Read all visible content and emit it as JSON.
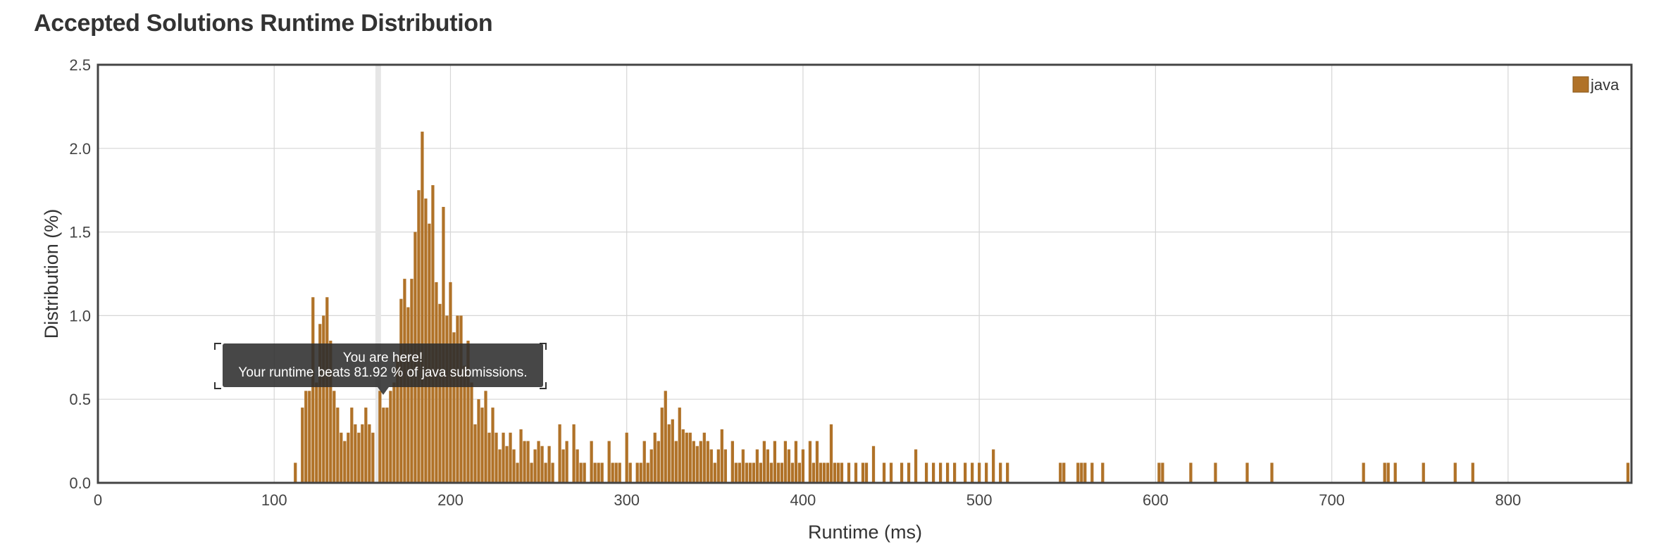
{
  "title": "Accepted Solutions Runtime Distribution",
  "tooltip": {
    "line1": "You are here!",
    "line2": "Your runtime beats 81.92 % of java submissions."
  },
  "colors": {
    "bar": "#b07228",
    "grid": "#d6d6d6",
    "frame": "#444444",
    "marker": "#e6e6e6"
  },
  "chart_data": {
    "type": "bar",
    "title": "Accepted Solutions Runtime Distribution",
    "xlabel": "Runtime (ms)",
    "ylabel": "Distribution (%)",
    "xlim": [
      0,
      870
    ],
    "ylim": [
      0,
      2.5
    ],
    "xticks": [
      "0",
      "100",
      "200",
      "300",
      "400",
      "500",
      "600",
      "700",
      "800"
    ],
    "yticks": [
      "0.0",
      "0.5",
      "1.0",
      "1.5",
      "2.0",
      "2.5"
    ],
    "grid": true,
    "legend": {
      "position": "top-right",
      "entries": [
        "java"
      ]
    },
    "highlight_runtime": 159,
    "bar_width_ms": 1.7,
    "series": [
      {
        "name": "java",
        "x": [
          112,
          114,
          116,
          118,
          120,
          122,
          124,
          126,
          128,
          130,
          132,
          134,
          136,
          138,
          140,
          142,
          144,
          146,
          148,
          150,
          152,
          154,
          156,
          158,
          160,
          162,
          164,
          166,
          168,
          170,
          172,
          174,
          176,
          178,
          180,
          182,
          184,
          186,
          188,
          190,
          192,
          194,
          196,
          198,
          200,
          202,
          204,
          206,
          208,
          210,
          212,
          214,
          216,
          218,
          220,
          222,
          224,
          226,
          228,
          230,
          232,
          234,
          236,
          238,
          240,
          242,
          244,
          246,
          248,
          250,
          252,
          254,
          256,
          258,
          260,
          262,
          264,
          266,
          268,
          270,
          272,
          274,
          276,
          278,
          280,
          282,
          284,
          286,
          288,
          290,
          292,
          294,
          296,
          298,
          300,
          302,
          304,
          306,
          308,
          310,
          312,
          314,
          316,
          318,
          320,
          322,
          324,
          326,
          328,
          330,
          332,
          334,
          336,
          338,
          340,
          342,
          344,
          346,
          348,
          350,
          352,
          354,
          356,
          358,
          360,
          362,
          364,
          366,
          368,
          370,
          372,
          374,
          376,
          378,
          380,
          382,
          384,
          386,
          388,
          390,
          392,
          394,
          396,
          398,
          400,
          402,
          404,
          406,
          408,
          410,
          412,
          414,
          416,
          418,
          420,
          422,
          426,
          430,
          434,
          436,
          440,
          446,
          450,
          456,
          460,
          464,
          470,
          474,
          478,
          482,
          486,
          492,
          496,
          500,
          504,
          508,
          512,
          516,
          546,
          548,
          556,
          558,
          560,
          564,
          570,
          602,
          604,
          620,
          634,
          652,
          666,
          718,
          730,
          732,
          736,
          752,
          770,
          780,
          868
        ],
        "values": [
          0.12,
          0.0,
          0.45,
          0.55,
          0.55,
          1.11,
          0.6,
          0.95,
          1.0,
          1.11,
          0.85,
          0.55,
          0.45,
          0.3,
          0.25,
          0.3,
          0.45,
          0.35,
          0.3,
          0.35,
          0.45,
          0.35,
          0.3,
          0.0,
          0.55,
          0.45,
          0.45,
          0.55,
          0.6,
          0.75,
          1.1,
          1.22,
          1.05,
          1.22,
          1.5,
          1.75,
          2.1,
          1.7,
          1.55,
          1.78,
          1.2,
          1.07,
          1.65,
          1.0,
          1.2,
          0.9,
          1.0,
          1.0,
          0.7,
          0.85,
          0.6,
          0.35,
          0.5,
          0.45,
          0.55,
          0.3,
          0.45,
          0.3,
          0.2,
          0.3,
          0.22,
          0.3,
          0.2,
          0.12,
          0.32,
          0.25,
          0.25,
          0.12,
          0.2,
          0.25,
          0.22,
          0.12,
          0.22,
          0.12,
          0.0,
          0.35,
          0.2,
          0.25,
          0.0,
          0.35,
          0.2,
          0.12,
          0.12,
          0.0,
          0.25,
          0.12,
          0.12,
          0.12,
          0.0,
          0.25,
          0.12,
          0.12,
          0.12,
          0.0,
          0.3,
          0.12,
          0.0,
          0.12,
          0.12,
          0.25,
          0.12,
          0.2,
          0.3,
          0.25,
          0.45,
          0.55,
          0.35,
          0.38,
          0.25,
          0.45,
          0.32,
          0.3,
          0.3,
          0.25,
          0.22,
          0.25,
          0.3,
          0.25,
          0.2,
          0.12,
          0.2,
          0.32,
          0.2,
          0.0,
          0.25,
          0.12,
          0.12,
          0.2,
          0.12,
          0.12,
          0.12,
          0.2,
          0.12,
          0.25,
          0.2,
          0.12,
          0.25,
          0.12,
          0.12,
          0.25,
          0.2,
          0.12,
          0.25,
          0.12,
          0.2,
          0.0,
          0.25,
          0.12,
          0.25,
          0.12,
          0.12,
          0.12,
          0.35,
          0.12,
          0.12,
          0.12,
          0.12,
          0.12,
          0.12,
          0.12,
          0.22,
          0.12,
          0.12,
          0.12,
          0.12,
          0.2,
          0.12,
          0.12,
          0.12,
          0.12,
          0.12,
          0.12,
          0.12,
          0.12,
          0.12,
          0.2,
          0.12,
          0.12,
          0.12,
          0.12,
          0.12,
          0.12,
          0.12,
          0.12,
          0.12,
          0.12,
          0.12,
          0.12,
          0.12,
          0.12,
          0.12,
          0.12,
          0.12,
          0.12,
          0.12,
          0.12,
          0.12,
          0.12,
          0.12
        ]
      }
    ]
  }
}
